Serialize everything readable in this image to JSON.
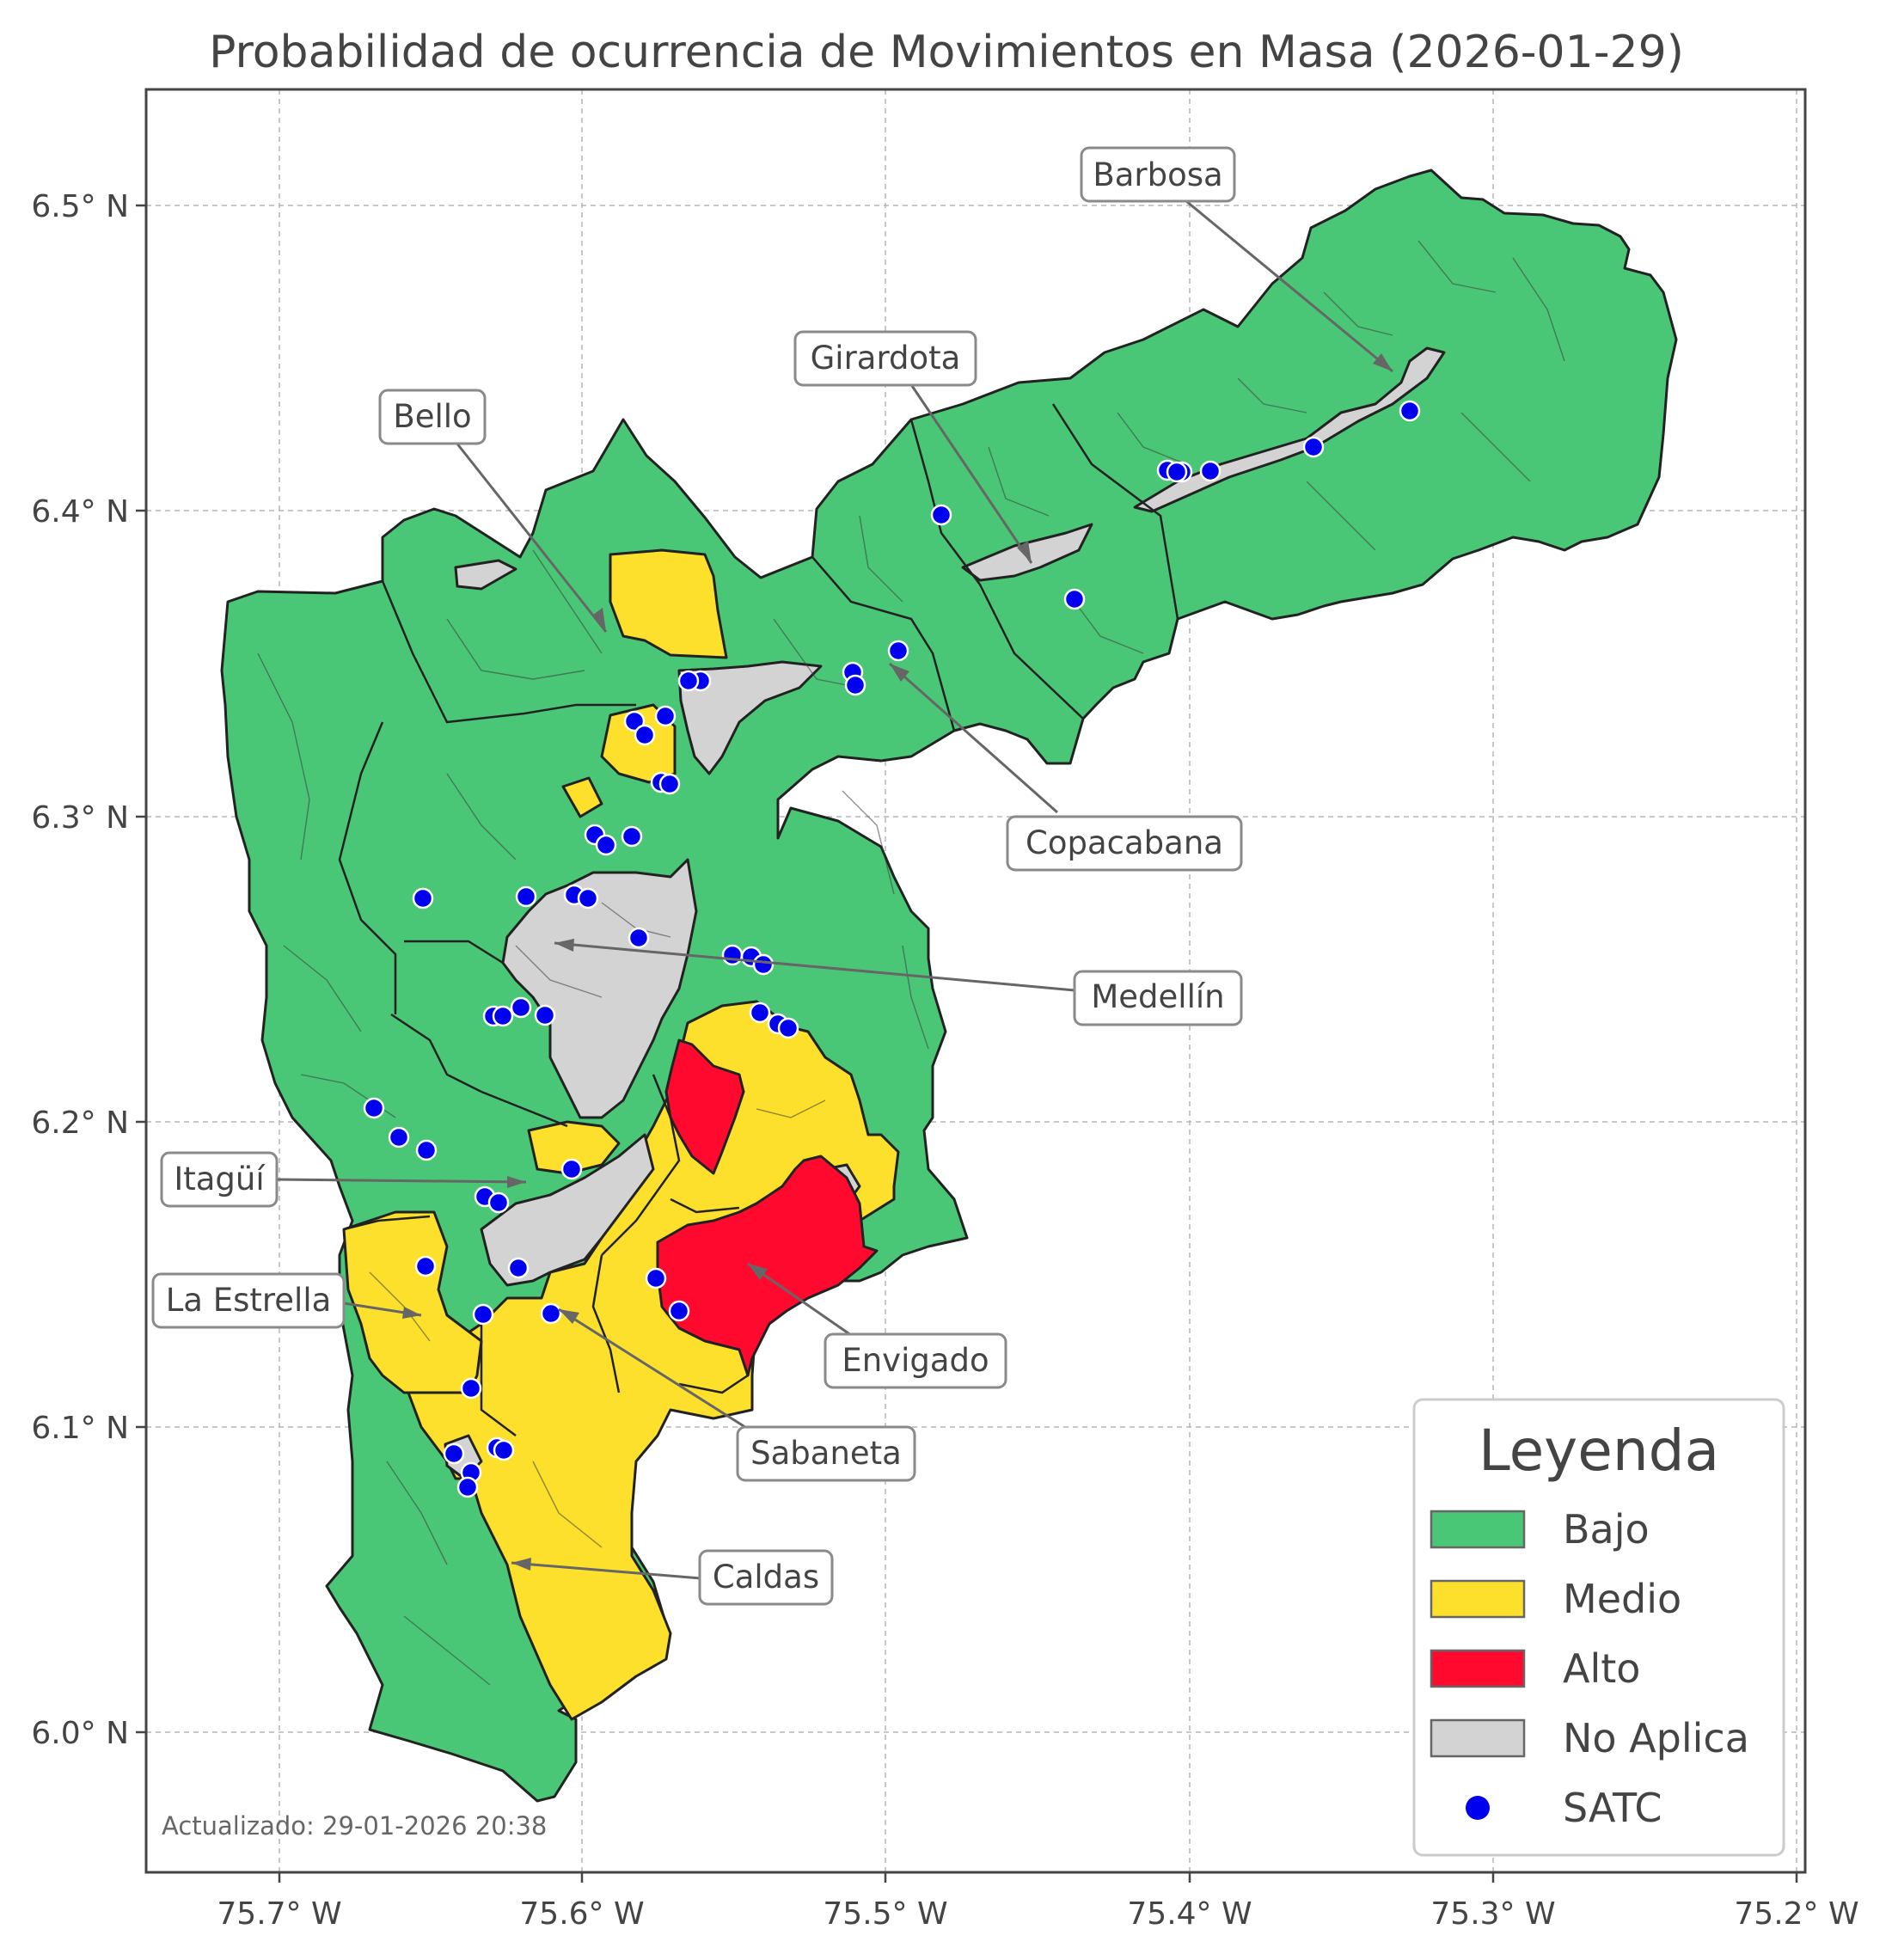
{
  "map": {
    "title": "Probabilidad de ocurrencia de Movimientos en Masa (2026-01-29)",
    "updated_label": "Actualizado: 29-01-2026 20:38",
    "x_ticks": [
      "75.7° W",
      "75.6° W",
      "75.5° W",
      "75.4° W",
      "75.3° W",
      "75.2° W"
    ],
    "y_ticks": [
      "6.5° N",
      "6.4° N",
      "6.3° N",
      "6.2° N",
      "6.1° N",
      "6.0° N"
    ],
    "municipalities": [
      {
        "label": "Barbosa"
      },
      {
        "label": "Girardota"
      },
      {
        "label": "Bello"
      },
      {
        "label": "Copacabana"
      },
      {
        "label": "Medellín"
      },
      {
        "label": "Itagüí"
      },
      {
        "label": "La Estrella"
      },
      {
        "label": "Envigado"
      },
      {
        "label": "Sabaneta"
      },
      {
        "label": "Caldas"
      }
    ],
    "colors": {
      "bajo": "#4ac776",
      "medio": "#fde02c",
      "alto": "#ff0a2e",
      "no_aplica": "#d3d3d3",
      "satc": "#0000ee"
    },
    "legend": {
      "title": "Leyenda",
      "items": [
        {
          "label": "Bajo"
        },
        {
          "label": "Medio"
        },
        {
          "label": "Alto"
        },
        {
          "label": "No Aplica"
        },
        {
          "label": "SATC"
        }
      ]
    },
    "satc_station_count": 55
  }
}
